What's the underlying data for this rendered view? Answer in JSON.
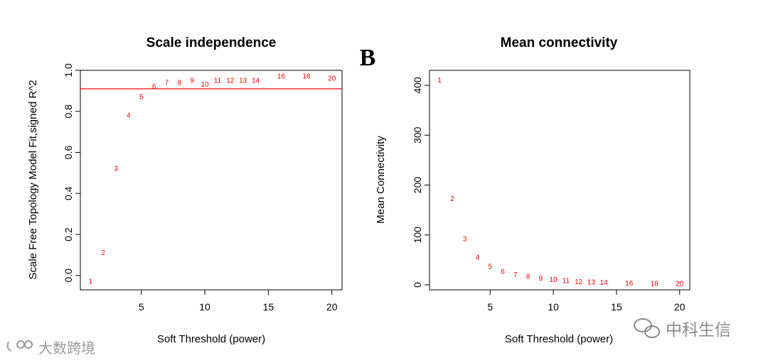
{
  "panel_letter": "B",
  "chart_data": [
    {
      "type": "scatter",
      "title": "Scale independence",
      "xlabel": "Soft Threshold (power)",
      "ylabel": "Scale Free Topology Model Fit,signed R^2",
      "xlim": [
        0.2,
        20.8
      ],
      "ylim": [
        -0.07,
        1.0
      ],
      "xticks": [
        5,
        10,
        15,
        20
      ],
      "yticks": [
        0.0,
        0.2,
        0.4,
        0.6,
        0.8,
        1.0
      ],
      "ytick_labels": [
        "0.0",
        "0.2",
        "0.4",
        "0.6",
        "0.8",
        "1.0"
      ],
      "hline": 0.91,
      "hline_color": "#ff0000",
      "point_color": "#ff0000",
      "points": [
        {
          "x": 1,
          "y": -0.03,
          "label": "1"
        },
        {
          "x": 2,
          "y": 0.11,
          "label": "2"
        },
        {
          "x": 3,
          "y": 0.52,
          "label": "3"
        },
        {
          "x": 4,
          "y": 0.78,
          "label": "4"
        },
        {
          "x": 5,
          "y": 0.87,
          "label": "5"
        },
        {
          "x": 6,
          "y": 0.92,
          "label": "6"
        },
        {
          "x": 7,
          "y": 0.94,
          "label": "7"
        },
        {
          "x": 8,
          "y": 0.94,
          "label": "8"
        },
        {
          "x": 9,
          "y": 0.95,
          "label": "9"
        },
        {
          "x": 10,
          "y": 0.93,
          "label": "10"
        },
        {
          "x": 11,
          "y": 0.95,
          "label": "11"
        },
        {
          "x": 12,
          "y": 0.95,
          "label": "12"
        },
        {
          "x": 13,
          "y": 0.95,
          "label": "13"
        },
        {
          "x": 14,
          "y": 0.95,
          "label": "14"
        },
        {
          "x": 16,
          "y": 0.97,
          "label": "16"
        },
        {
          "x": 18,
          "y": 0.97,
          "label": "18"
        },
        {
          "x": 20,
          "y": 0.96,
          "label": "20"
        }
      ]
    },
    {
      "type": "scatter",
      "title": "Mean connectivity",
      "xlabel": "Soft Threshold (power)",
      "ylabel": "Mean Connectivity",
      "xlim": [
        0.2,
        20.8
      ],
      "ylim": [
        -10,
        430
      ],
      "xticks": [
        5,
        10,
        15,
        20
      ],
      "yticks": [
        0,
        100,
        200,
        300,
        400
      ],
      "ytick_labels": [
        "0",
        "100",
        "200",
        "300",
        "400"
      ],
      "point_color": "#ff0000",
      "points": [
        {
          "x": 1,
          "y": 410,
          "label": "1"
        },
        {
          "x": 2,
          "y": 172,
          "label": "2"
        },
        {
          "x": 3,
          "y": 92,
          "label": "3"
        },
        {
          "x": 4,
          "y": 55,
          "label": "4"
        },
        {
          "x": 5,
          "y": 36,
          "label": "5"
        },
        {
          "x": 6,
          "y": 26,
          "label": "6"
        },
        {
          "x": 7,
          "y": 20,
          "label": "7"
        },
        {
          "x": 8,
          "y": 16,
          "label": "8"
        },
        {
          "x": 9,
          "y": 13,
          "label": "9"
        },
        {
          "x": 10,
          "y": 10,
          "label": "10"
        },
        {
          "x": 11,
          "y": 8,
          "label": "11"
        },
        {
          "x": 12,
          "y": 6,
          "label": "12"
        },
        {
          "x": 13,
          "y": 5,
          "label": "13"
        },
        {
          "x": 14,
          "y": 4,
          "label": "14"
        },
        {
          "x": 16,
          "y": 3,
          "label": "16"
        },
        {
          "x": 18,
          "y": 2,
          "label": "18"
        },
        {
          "x": 20,
          "y": 2,
          "label": "20"
        }
      ]
    }
  ],
  "watermarks": {
    "left": "大数跨境",
    "right": "中科生信"
  }
}
